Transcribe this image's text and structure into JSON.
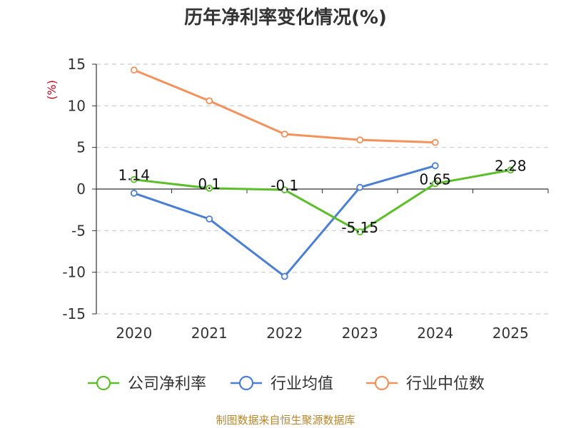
{
  "chart_data": {
    "type": "line",
    "title": "历年净利率变化情况(%)",
    "xlabel": "",
    "ylabel": "(%)",
    "categories": [
      "2020",
      "2021",
      "2022",
      "2023",
      "2024",
      "2025"
    ],
    "ylim": [
      -15,
      15
    ],
    "yticks": [
      15,
      10,
      5,
      0,
      -5,
      -10,
      -15
    ],
    "grid": true,
    "legend_position": "bottom",
    "series": [
      {
        "name": "公司净利率",
        "color": "#5cbf2a",
        "values": [
          1.14,
          0.1,
          -0.1,
          -5.15,
          0.65,
          2.28
        ],
        "labels": [
          "1.14",
          "0.1",
          "-0.1",
          "-5.15",
          "0.65",
          "2.28"
        ]
      },
      {
        "name": "行业均值",
        "color": "#4a7fd6",
        "values": [
          -0.5,
          -3.6,
          -10.5,
          0.2,
          2.8,
          null
        ]
      },
      {
        "name": "行业中位数",
        "color": "#f5915a",
        "values": [
          14.3,
          10.6,
          6.6,
          5.9,
          5.6,
          null
        ]
      }
    ]
  },
  "source": "制图数据来自恒生聚源数据库"
}
